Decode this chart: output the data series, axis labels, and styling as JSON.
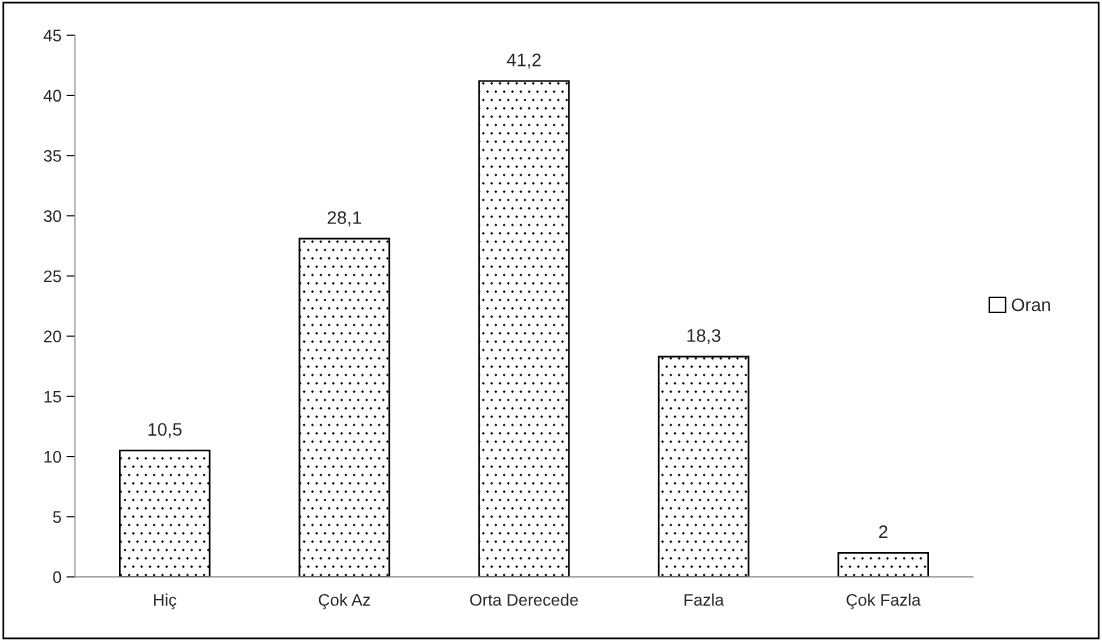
{
  "chart_data": {
    "type": "bar",
    "categories": [
      "Hiç",
      "Çok Az",
      "Orta Derecede",
      "Fazla",
      "Çok Fazla"
    ],
    "series": [
      {
        "name": "Oran",
        "color": "#ffffff",
        "values": [
          10.5,
          28.1,
          41.2,
          18.3,
          2
        ],
        "value_labels": [
          "10,5",
          "28,1",
          "41,2",
          "18,3",
          "2"
        ]
      }
    ],
    "ylim": [
      0,
      45
    ],
    "yticks": [
      0,
      5,
      10,
      15,
      20,
      25,
      30,
      35,
      40,
      45
    ],
    "grid": false,
    "legend": "right"
  }
}
